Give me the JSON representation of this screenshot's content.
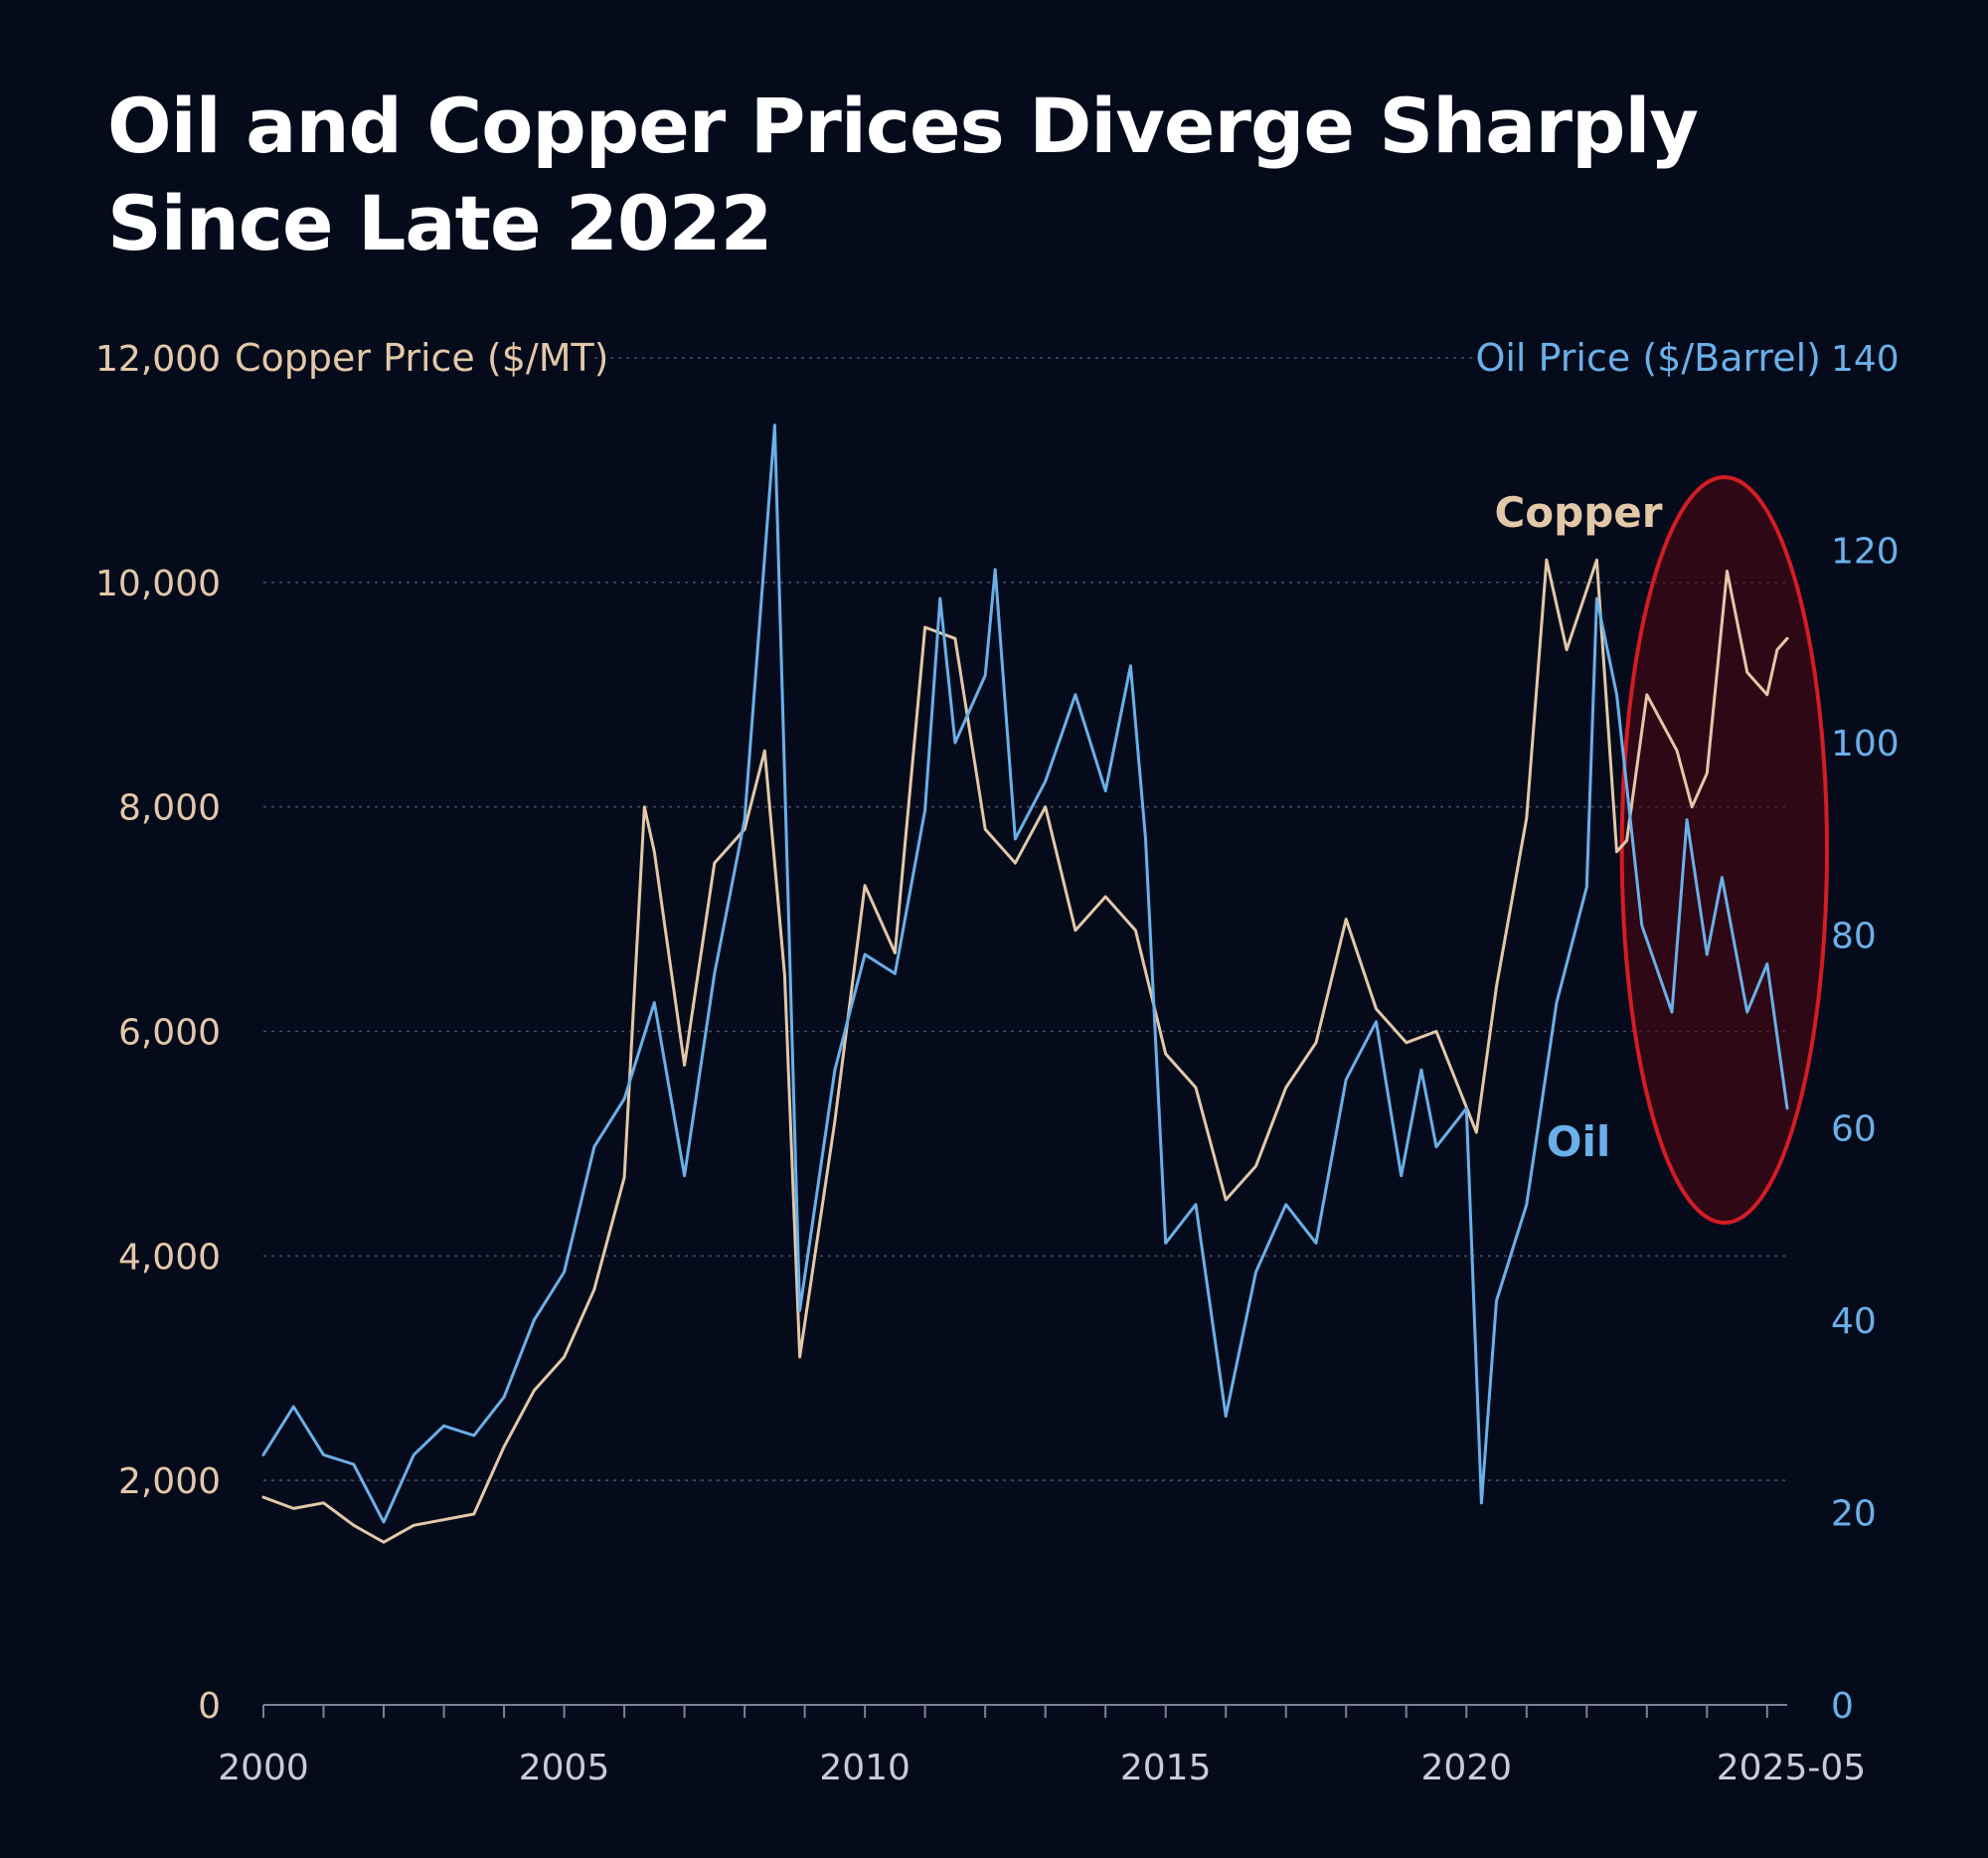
{
  "chart_data": {
    "type": "line",
    "title": "Oil and Copper Prices Diverge Sharply Since Late 2022",
    "xlabel": "",
    "x_ticks": [
      "2000",
      "2005",
      "2010",
      "2015",
      "2020",
      "2025-05"
    ],
    "x_range": [
      "2000-01",
      "2025-05"
    ],
    "left_axis": {
      "label": "Copper Price ($/MT)",
      "range": [
        0,
        12000
      ],
      "ticks": [
        "0",
        "2,000",
        "4,000",
        "6,000",
        "8,000",
        "10,000",
        "12,000"
      ]
    },
    "right_axis": {
      "label": "Oil Price ($/Barrel)",
      "range": [
        0,
        140
      ],
      "ticks": [
        "0",
        "20",
        "40",
        "60",
        "80",
        "100",
        "120",
        "140"
      ]
    },
    "grid": "horizontal-dotted",
    "series": [
      {
        "name": "Copper",
        "axis": "left",
        "color": "#e3c8a8",
        "x": [
          "2000-01",
          "2000-07",
          "2001-01",
          "2001-07",
          "2002-01",
          "2002-07",
          "2003-01",
          "2003-07",
          "2004-01",
          "2004-07",
          "2005-01",
          "2005-07",
          "2006-01",
          "2006-05",
          "2006-07",
          "2007-01",
          "2007-07",
          "2008-01",
          "2008-05",
          "2008-09",
          "2008-12",
          "2009-07",
          "2010-01",
          "2010-07",
          "2011-01",
          "2011-07",
          "2012-01",
          "2012-07",
          "2013-01",
          "2013-07",
          "2014-01",
          "2014-07",
          "2015-01",
          "2015-07",
          "2016-01",
          "2016-07",
          "2017-01",
          "2017-07",
          "2018-01",
          "2018-07",
          "2019-01",
          "2019-07",
          "2020-03",
          "2020-07",
          "2021-01",
          "2021-05",
          "2021-09",
          "2022-03",
          "2022-07",
          "2022-09",
          "2023-01",
          "2023-07",
          "2023-10",
          "2024-01",
          "2024-05",
          "2024-09",
          "2025-01",
          "2025-03",
          "2025-05"
        ],
        "values": [
          1850,
          1750,
          1800,
          1600,
          1450,
          1600,
          1650,
          1700,
          2300,
          2800,
          3100,
          3700,
          4700,
          8000,
          7600,
          5700,
          7500,
          7800,
          8500,
          6500,
          3100,
          5200,
          7300,
          6700,
          9600,
          9500,
          7800,
          7500,
          8000,
          6900,
          7200,
          6900,
          5800,
          5500,
          4500,
          4800,
          5500,
          5900,
          7000,
          6200,
          5900,
          6000,
          5100,
          6400,
          7900,
          10200,
          9400,
          10200,
          7600,
          7700,
          9000,
          8500,
          8000,
          8300,
          10100,
          9200,
          9000,
          9400,
          9500
        ]
      },
      {
        "name": "Oil",
        "axis": "right",
        "color": "#6ab0e8",
        "x": [
          "2000-01",
          "2000-07",
          "2001-01",
          "2001-07",
          "2002-01",
          "2002-07",
          "2003-01",
          "2003-07",
          "2004-01",
          "2004-07",
          "2005-01",
          "2005-07",
          "2006-01",
          "2006-07",
          "2007-01",
          "2007-07",
          "2008-01",
          "2008-07",
          "2008-12",
          "2009-07",
          "2010-01",
          "2010-07",
          "2011-01",
          "2011-04",
          "2011-07",
          "2012-01",
          "2012-03",
          "2012-07",
          "2013-01",
          "2013-07",
          "2014-01",
          "2014-06",
          "2014-09",
          "2015-01",
          "2015-07",
          "2016-01",
          "2016-07",
          "2017-01",
          "2017-07",
          "2018-01",
          "2018-07",
          "2018-12",
          "2019-04",
          "2019-07",
          "2020-01",
          "2020-04",
          "2020-07",
          "2021-01",
          "2021-07",
          "2022-01",
          "2022-03",
          "2022-07",
          "2022-12",
          "2023-06",
          "2023-09",
          "2024-01",
          "2024-04",
          "2024-09",
          "2025-01",
          "2025-05"
        ],
        "values": [
          26,
          31,
          26,
          25,
          19,
          26,
          29,
          28,
          32,
          40,
          45,
          58,
          63,
          73,
          55,
          76,
          92,
          133,
          41,
          66,
          78,
          76,
          93,
          115,
          100,
          107,
          118,
          90,
          96,
          105,
          95,
          108,
          90,
          48,
          52,
          30,
          45,
          52,
          48,
          65,
          71,
          55,
          66,
          58,
          62,
          21,
          42,
          52,
          73,
          85,
          115,
          105,
          81,
          72,
          92,
          78,
          86,
          72,
          77,
          62
        ]
      }
    ],
    "annotations": [
      {
        "text": "Copper",
        "series": "Copper"
      },
      {
        "text": "Oil",
        "series": "Oil"
      },
      {
        "type": "ellipse-highlight",
        "x_range": [
          "2022-09",
          "2025-05"
        ],
        "color": "#d41c24"
      }
    ]
  }
}
